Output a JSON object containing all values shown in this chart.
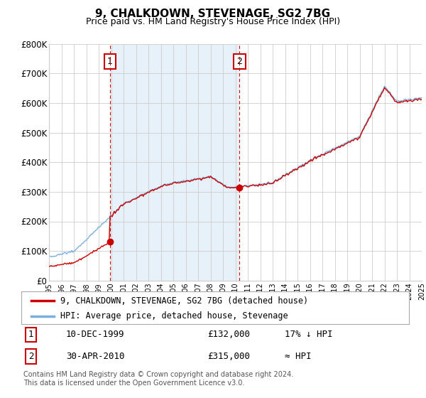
{
  "title": "9, CHALKDOWN, STEVENAGE, SG2 7BG",
  "subtitle": "Price paid vs. HM Land Registry's House Price Index (HPI)",
  "ylabel_ticks": [
    "£0",
    "£100K",
    "£200K",
    "£300K",
    "£400K",
    "£500K",
    "£600K",
    "£700K",
    "£800K"
  ],
  "ytick_values": [
    0,
    100000,
    200000,
    300000,
    400000,
    500000,
    600000,
    700000,
    800000
  ],
  "ylim": [
    0,
    800000
  ],
  "sale1_year": 1999.92,
  "sale1_price": 132000,
  "sale2_year": 2010.33,
  "sale2_price": 315000,
  "hpi_color": "#7ab0e0",
  "hpi_fill_color": "#d6e8f7",
  "price_color": "#cc0000",
  "vline_color": "#cc0000",
  "background_color": "#ffffff",
  "grid_color": "#cccccc",
  "legend_entry1": "9, CHALKDOWN, STEVENAGE, SG2 7BG (detached house)",
  "legend_entry2": "HPI: Average price, detached house, Stevenage",
  "table_row1": [
    "1",
    "10-DEC-1999",
    "£132,000",
    "17% ↓ HPI"
  ],
  "table_row2": [
    "2",
    "30-APR-2010",
    "£315,000",
    "≈ HPI"
  ],
  "footnote": "Contains HM Land Registry data © Crown copyright and database right 2024.\nThis data is licensed under the Open Government Licence v3.0.",
  "xmin": 1995,
  "xmax": 2025
}
